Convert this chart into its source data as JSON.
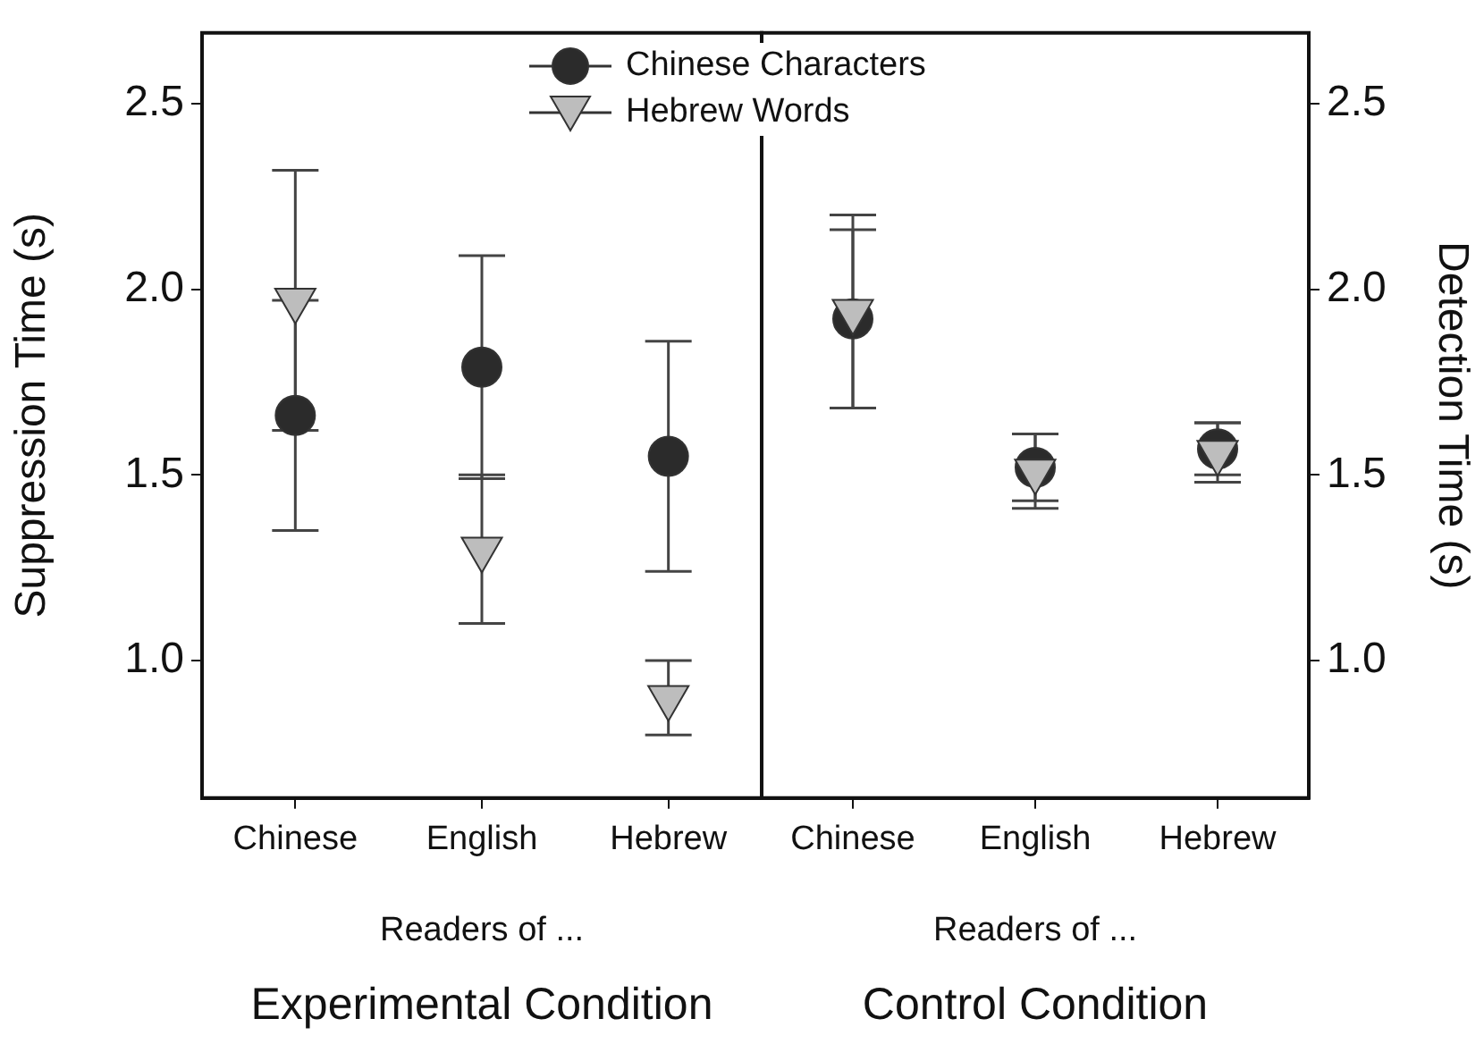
{
  "chart_data": [
    {
      "type": "scatter",
      "ylabel": "Suppression Time (s)",
      "xlabel": "Readers of ...",
      "annotations": [
        "Experimental Condition"
      ],
      "categories": [
        "Chinese",
        "English",
        "Hebrew"
      ],
      "ylim": [
        0.63,
        2.69
      ],
      "yticks": [
        {
          "value": 1,
          "label": "1.0"
        },
        {
          "value": 1.5,
          "label": "1.5"
        },
        {
          "value": 2,
          "label": "2.0"
        },
        {
          "value": 2.5,
          "label": "2.5"
        }
      ],
      "legend": "top",
      "series": [
        {
          "name": "Chinese Characters",
          "color": "#2b2b2b",
          "marker": "circle",
          "values": [
            1.66,
            1.79,
            1.55
          ],
          "errors": [
            0.31,
            0.3,
            0.31
          ]
        },
        {
          "name": "Hebrew Words",
          "color": "#bdbdbd",
          "marker": "triangle",
          "values": [
            1.97,
            1.3,
            0.9
          ],
          "errors": [
            0.35,
            0.2,
            0.1
          ]
        }
      ]
    },
    {
      "type": "scatter",
      "ylabel": "Detection Time (s)",
      "xlabel": "Readers of ...",
      "annotations": [
        "Control Condition"
      ],
      "categories": [
        "Chinese",
        "English",
        "Hebrew"
      ],
      "ylim": [
        0.63,
        2.69
      ],
      "yticks": [
        {
          "value": 1,
          "label": "1.0"
        },
        {
          "value": 1.5,
          "label": "1.5"
        },
        {
          "value": 2,
          "label": "2.0"
        },
        {
          "value": 2.5,
          "label": "2.5"
        }
      ],
      "series": [
        {
          "color": "#2b2b2b",
          "marker": "circle",
          "values": [
            1.92,
            1.52,
            1.57
          ],
          "errors": [
            0.24,
            0.09,
            0.07
          ]
        },
        {
          "color": "#bdbdbd",
          "marker": "triangle",
          "values": [
            1.94,
            1.51,
            1.56
          ],
          "errors": [
            0.26,
            0.1,
            0.08
          ]
        }
      ]
    }
  ]
}
